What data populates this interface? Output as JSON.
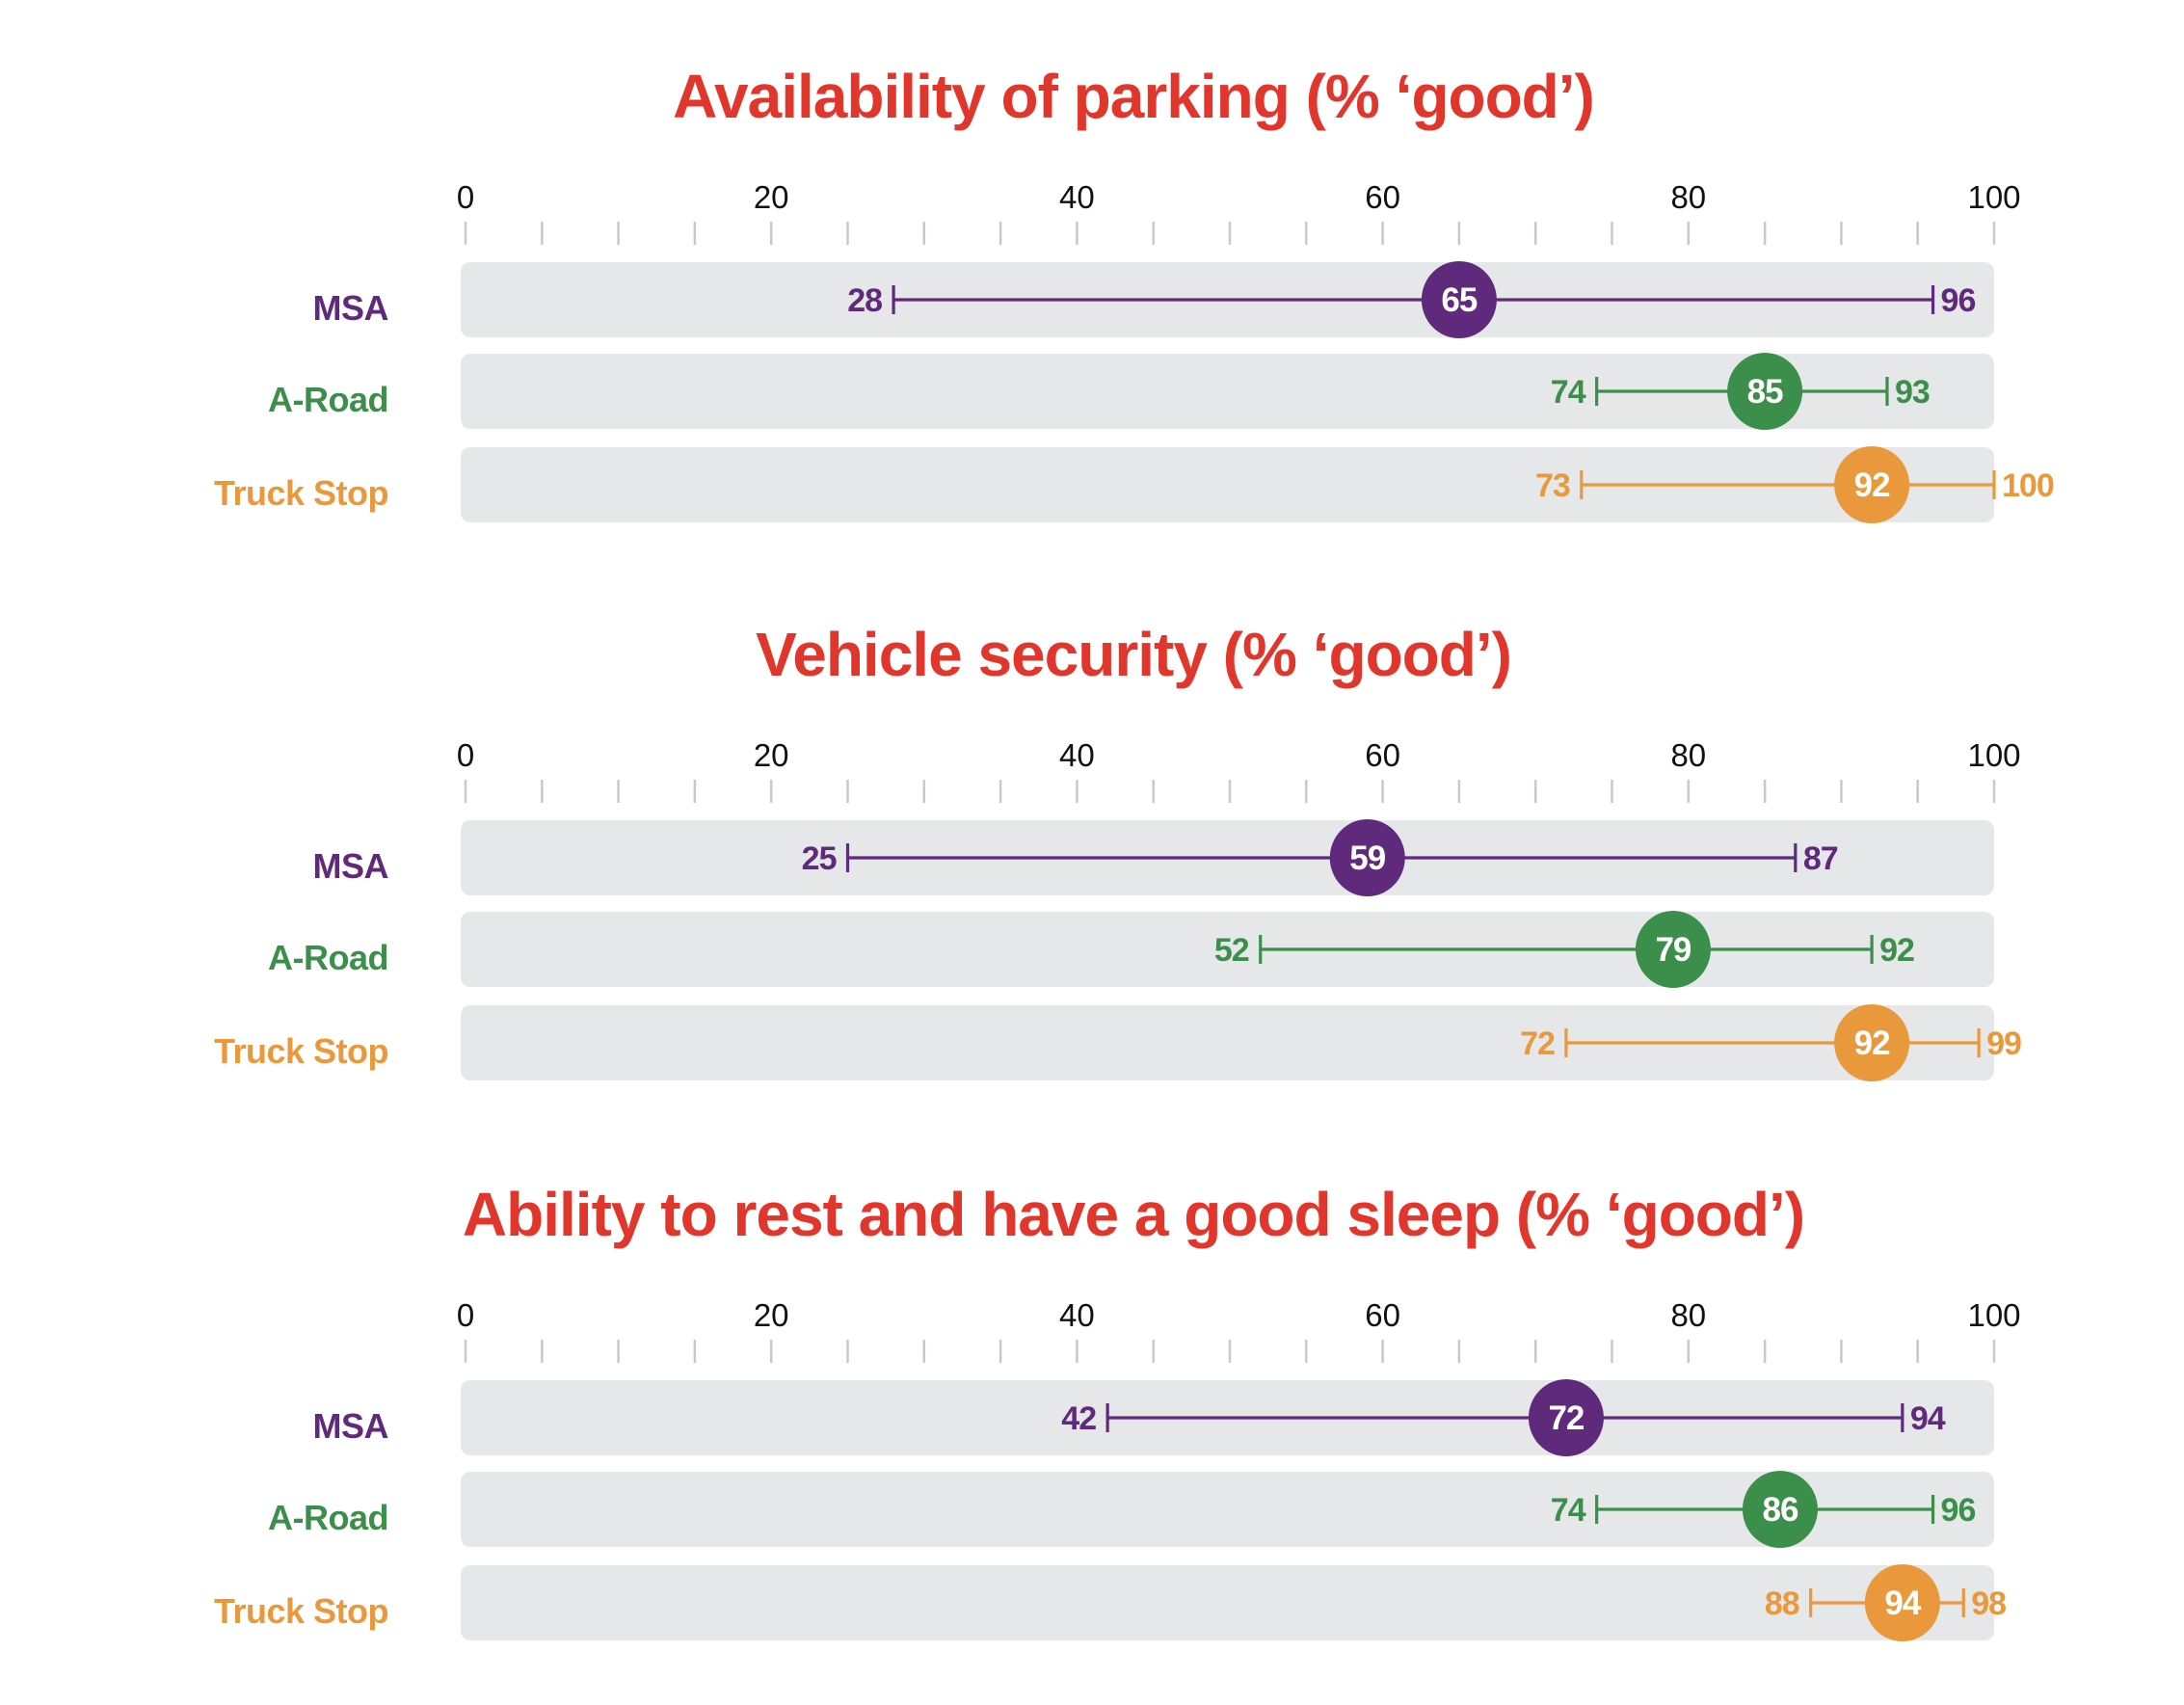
{
  "colors": {
    "title": "#e1362c",
    "MSA": "#5f2a7c",
    "A-Road": "#3c8f4b",
    "Truck Stop": "#e9993b",
    "track": "#e6e7e9",
    "tick": "#c9c9cb",
    "dot_text": "#ffffff"
  },
  "chart_data": [
    {
      "type": "dot-range",
      "title": "Availability of parking (% ‘good’)",
      "xlabel": "",
      "ylabel": "",
      "xlim": [
        0,
        100
      ],
      "major_ticks": [
        0,
        20,
        40,
        60,
        80,
        100
      ],
      "minor_tick_step": 5,
      "grid": false,
      "legend": "none",
      "categories": [
        "MSA",
        "A-Road",
        "Truck Stop"
      ],
      "series": [
        {
          "name": "MSA",
          "low": 28,
          "value": 65,
          "high": 96
        },
        {
          "name": "A-Road",
          "low": 74,
          "value": 85,
          "high": 93
        },
        {
          "name": "Truck Stop",
          "low": 73,
          "value": 92,
          "high": 100
        }
      ]
    },
    {
      "type": "dot-range",
      "title": "Vehicle security (% ‘good’)",
      "xlabel": "",
      "ylabel": "",
      "xlim": [
        0,
        100
      ],
      "major_ticks": [
        0,
        20,
        40,
        60,
        80,
        100
      ],
      "minor_tick_step": 5,
      "grid": false,
      "legend": "none",
      "categories": [
        "MSA",
        "A-Road",
        "Truck Stop"
      ],
      "series": [
        {
          "name": "MSA",
          "low": 25,
          "value": 59,
          "high": 87
        },
        {
          "name": "A-Road",
          "low": 52,
          "value": 79,
          "high": 92
        },
        {
          "name": "Truck Stop",
          "low": 72,
          "value": 92,
          "high": 99
        }
      ]
    },
    {
      "type": "dot-range",
      "title": "Ability to rest and have a good sleep (% ‘good’)",
      "xlabel": "",
      "ylabel": "",
      "xlim": [
        0,
        100
      ],
      "major_ticks": [
        0,
        20,
        40,
        60,
        80,
        100
      ],
      "minor_tick_step": 5,
      "grid": false,
      "legend": "none",
      "categories": [
        "MSA",
        "A-Road",
        "Truck Stop"
      ],
      "series": [
        {
          "name": "MSA",
          "low": 42,
          "value": 72,
          "high": 94
        },
        {
          "name": "A-Road",
          "low": 74,
          "value": 86,
          "high": 96
        },
        {
          "name": "Truck Stop",
          "low": 88,
          "value": 94,
          "high": 98
        }
      ]
    }
  ]
}
